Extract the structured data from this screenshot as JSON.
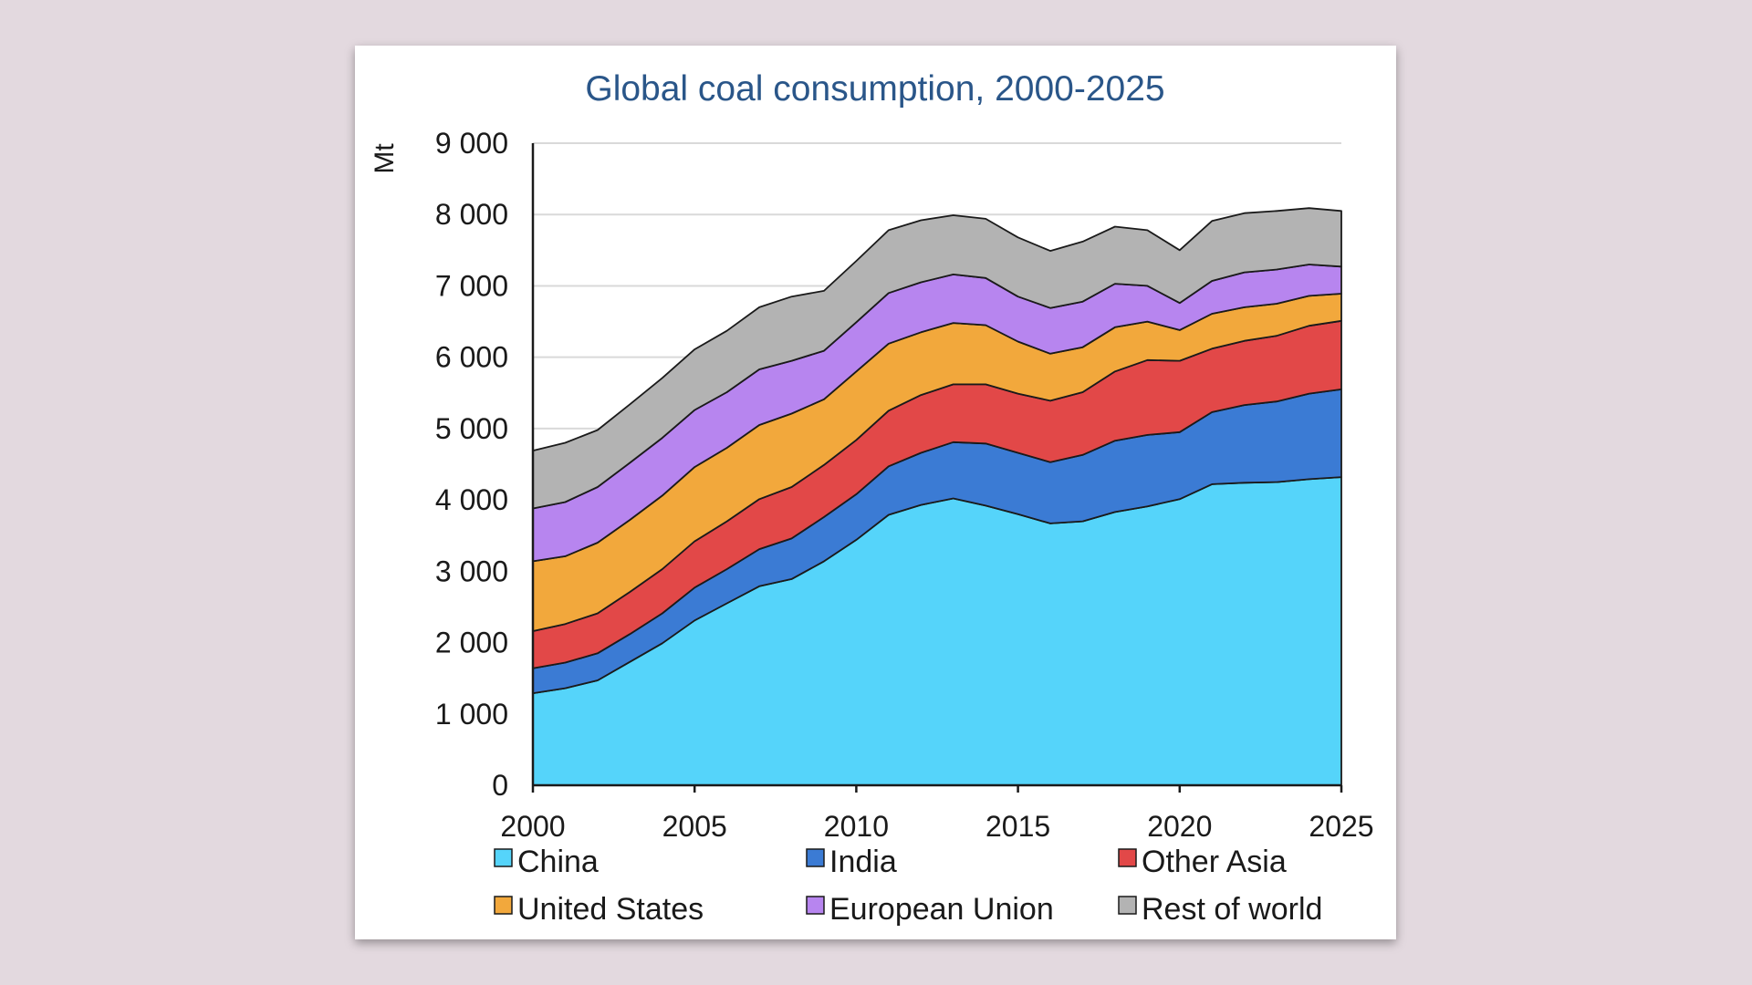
{
  "chart_data": {
    "type": "area",
    "stacked": true,
    "title": "Global coal consumption, 2000-2025",
    "xlabel": "",
    "ylabel": "Mt",
    "xlim": [
      2000,
      2025
    ],
    "ylim": [
      0,
      9000
    ],
    "grid": true,
    "legend_position": "bottom",
    "x": [
      2000,
      2001,
      2002,
      2003,
      2004,
      2005,
      2006,
      2007,
      2008,
      2009,
      2010,
      2011,
      2012,
      2013,
      2014,
      2015,
      2016,
      2017,
      2018,
      2019,
      2020,
      2021,
      2022,
      2023,
      2024,
      2025
    ],
    "x_ticks": [
      2000,
      2005,
      2010,
      2015,
      2020,
      2025
    ],
    "x_tick_labels": [
      "2000",
      "2005",
      "2010",
      "2015",
      "2020",
      "2025"
    ],
    "y_ticks": [
      0,
      1000,
      2000,
      3000,
      4000,
      5000,
      6000,
      7000,
      8000,
      9000
    ],
    "y_tick_labels": [
      "0",
      "1 000",
      "2 000",
      "3 000",
      "4 000",
      "5 000",
      "6 000",
      "7 000",
      "8 000",
      "9 000"
    ],
    "series": [
      {
        "name": "China",
        "color": "#55d4fa",
        "values": [
          1290,
          1360,
          1470,
          1730,
          1990,
          2310,
          2550,
          2790,
          2890,
          3140,
          3440,
          3790,
          3930,
          4020,
          3920,
          3800,
          3670,
          3700,
          3830,
          3910,
          4010,
          4220,
          4240,
          4250,
          4290,
          4320
        ]
      },
      {
        "name": "India",
        "color": "#3b7bd4",
        "values": [
          350,
          360,
          380,
          390,
          420,
          460,
          480,
          520,
          570,
          620,
          640,
          680,
          730,
          790,
          870,
          860,
          860,
          930,
          1000,
          1000,
          940,
          1010,
          1090,
          1130,
          1200,
          1230
        ]
      },
      {
        "name": "Other Asia",
        "color": "#e24848",
        "values": [
          520,
          540,
          560,
          590,
          620,
          650,
          670,
          700,
          720,
          730,
          760,
          780,
          810,
          810,
          830,
          830,
          860,
          880,
          970,
          1050,
          1000,
          890,
          900,
          920,
          950,
          960
        ]
      },
      {
        "name": "United States",
        "color": "#f2a83c",
        "values": [
          980,
          950,
          990,
          1010,
          1030,
          1040,
          1030,
          1040,
          1030,
          920,
          960,
          940,
          880,
          860,
          830,
          730,
          660,
          630,
          620,
          540,
          430,
          490,
          470,
          450,
          420,
          380
        ]
      },
      {
        "name": "European Union",
        "color": "#b785ef",
        "values": [
          740,
          760,
          780,
          800,
          810,
          800,
          780,
          780,
          740,
          680,
          690,
          710,
          700,
          680,
          660,
          630,
          640,
          640,
          610,
          500,
          380,
          460,
          490,
          480,
          440,
          380
        ]
      },
      {
        "name": "Rest of world",
        "color": "#b3b3b3",
        "values": [
          810,
          830,
          800,
          820,
          840,
          850,
          860,
          870,
          900,
          840,
          860,
          880,
          870,
          830,
          830,
          830,
          800,
          840,
          800,
          780,
          740,
          840,
          830,
          820,
          790,
          780
        ]
      }
    ]
  }
}
